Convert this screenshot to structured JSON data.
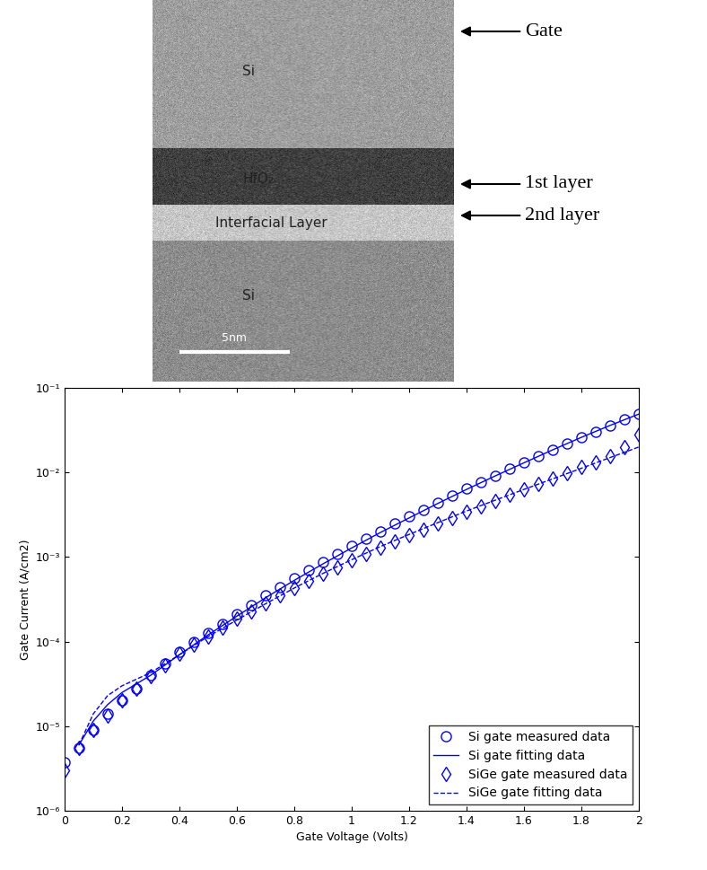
{
  "micrograph": {
    "layers": [
      "Si",
      "HfO₂",
      "Interfacial Layer",
      "Si"
    ],
    "scale_bar": "5nm",
    "callouts": [
      "Gate",
      "1st layer",
      "2nd layer"
    ]
  },
  "chart_data": {
    "type": "scatter",
    "x_label": "Gate Voltage (Volts)",
    "y_label": "Gate Current (A/cm2)",
    "log": "y",
    "grid": false,
    "legend": "lower right",
    "xlim": [
      0,
      2
    ],
    "xticks": [
      0,
      0.2,
      0.4,
      0.6,
      0.8,
      1,
      1.2,
      1.4,
      1.6,
      1.8,
      2
    ],
    "ylim": [
      1e-06,
      0.1
    ],
    "yticks": [
      {
        "value": 1e-06,
        "label": "10⁻⁶"
      },
      {
        "value": 1e-05,
        "label": "10⁻⁵"
      },
      {
        "value": 0.0001,
        "label": "10⁻⁴"
      },
      {
        "value": 0.001,
        "label": "10⁻³"
      },
      {
        "value": 0.01,
        "label": "10⁻²"
      },
      {
        "value": 0.1,
        "label": "10⁻¹"
      }
    ],
    "series": [
      {
        "name": "Si gate measured data",
        "type": "scatter",
        "color": "#0000ff",
        "marker": "circle",
        "x": [
          0,
          0.05,
          0.1,
          0.15,
          0.2,
          0.25,
          0.3,
          0.35,
          0.4,
          0.45,
          0.5,
          0.55,
          0.6,
          0.65,
          0.7,
          0.75,
          0.8,
          0.85,
          0.9,
          0.95,
          1,
          1.05,
          1.1,
          1.15,
          1.2,
          1.25,
          1.3,
          1.35,
          1.4,
          1.45,
          1.5,
          1.55,
          1.6,
          1.65,
          1.7,
          1.75,
          1.8,
          1.85,
          1.9,
          1.95,
          2
        ],
        "values": [
          3.7e-06,
          5.5e-06,
          9e-06,
          1.4e-05,
          2e-05,
          2.8e-05,
          4e-05,
          5.5e-05,
          7.5e-05,
          0.0001,
          0.000125,
          0.00016,
          0.00021,
          0.00027,
          0.00035,
          0.00044,
          0.00056,
          0.0007,
          0.00088,
          0.0011,
          0.00135,
          0.00165,
          0.002,
          0.0025,
          0.003,
          0.0036,
          0.0044,
          0.0053,
          0.0064,
          0.0077,
          0.0092,
          0.011,
          0.013,
          0.0155,
          0.0185,
          0.022,
          0.026,
          0.0305,
          0.036,
          0.042,
          0.049
        ]
      },
      {
        "name": "Si gate fitting data",
        "type": "line",
        "color": "#0000ff",
        "line_style": "solid",
        "x": [
          0.05,
          0.1,
          0.15,
          0.2,
          0.3,
          0.4,
          0.5,
          0.6,
          0.7,
          0.8,
          0.9,
          1,
          1.1,
          1.2,
          1.3,
          1.4,
          1.5,
          1.6,
          1.7,
          1.8,
          1.9,
          2
        ],
        "values": [
          6e-06,
          1.15e-05,
          1.8e-05,
          2.5e-05,
          4e-05,
          7e-05,
          0.00012,
          0.0002,
          0.00033,
          0.00053,
          0.00083,
          0.00128,
          0.00195,
          0.0029,
          0.0043,
          0.0063,
          0.0091,
          0.013,
          0.0185,
          0.026,
          0.036,
          0.049
        ]
      },
      {
        "name": "SiGe gate measured data",
        "type": "scatter",
        "color": "#0000ff",
        "marker": "diamond",
        "x": [
          0,
          0.05,
          0.1,
          0.15,
          0.2,
          0.25,
          0.3,
          0.35,
          0.4,
          0.45,
          0.5,
          0.55,
          0.6,
          0.65,
          0.7,
          0.75,
          0.8,
          0.85,
          0.9,
          0.95,
          1,
          1.05,
          1.1,
          1.15,
          1.2,
          1.25,
          1.3,
          1.35,
          1.4,
          1.45,
          1.5,
          1.55,
          1.6,
          1.65,
          1.7,
          1.75,
          1.8,
          1.85,
          1.9,
          1.95,
          2
        ],
        "values": [
          3e-06,
          5.5e-06,
          9e-06,
          1.35e-05,
          2e-05,
          2.8e-05,
          3.9e-05,
          5.3e-05,
          7.2e-05,
          9.2e-05,
          0.000115,
          0.000145,
          0.000185,
          0.00023,
          0.000285,
          0.00035,
          0.00043,
          0.00052,
          0.00063,
          0.00076,
          0.00091,
          0.00108,
          0.00128,
          0.00152,
          0.0018,
          0.0021,
          0.0025,
          0.0029,
          0.0034,
          0.004,
          0.0046,
          0.0054,
          0.0063,
          0.0073,
          0.0085,
          0.0099,
          0.0115,
          0.0133,
          0.0155,
          0.02,
          0.028
        ]
      },
      {
        "name": "SiGe gate fitting data",
        "type": "line",
        "color": "#0000ff",
        "line_style": "dashed",
        "x": [
          0.05,
          0.1,
          0.15,
          0.2,
          0.3,
          0.4,
          0.5,
          0.6,
          0.7,
          0.8,
          0.9,
          1,
          1.1,
          1.2,
          1.3,
          1.4,
          1.5,
          1.6,
          1.7,
          1.8,
          1.9,
          2
        ],
        "values": [
          6e-06,
          1.4e-05,
          2.3e-05,
          3e-05,
          4.3e-05,
          7e-05,
          0.000115,
          0.00018,
          0.00028,
          0.00043,
          0.00064,
          0.00093,
          0.00133,
          0.00185,
          0.00255,
          0.0035,
          0.0047,
          0.0063,
          0.0084,
          0.0112,
          0.015,
          0.02
        ]
      }
    ]
  }
}
